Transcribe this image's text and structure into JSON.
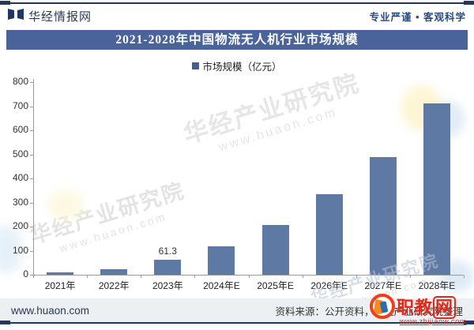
{
  "page": {
    "background": "#ffffff",
    "accent_navy": "#24355E"
  },
  "header": {
    "logo_text": "华经情报网",
    "tagline": "专业严谨 • 客观科学"
  },
  "title_banner": {
    "text": "2021-2028年中国物流无人机行业市场规模",
    "bg_color": "#4A649B",
    "text_color": "#ffffff"
  },
  "legend": {
    "label": "市场规模（亿元）",
    "swatch_color": "#44608F"
  },
  "chart_data": {
    "type": "bar",
    "title": "2021-2028年中国物流无人机行业市场规模",
    "unit": "亿元",
    "categories": [
      "2021年",
      "2022年",
      "2023年",
      "2024年E",
      "2025年E",
      "2026年E",
      "2027年E",
      "2028年E"
    ],
    "values": [
      11,
      22,
      61.3,
      118,
      205,
      335,
      490,
      713
    ],
    "shown_data_labels": [
      "",
      "",
      "61.3",
      "",
      "",
      "",
      "",
      ""
    ],
    "ylim": [
      0,
      800
    ],
    "ytick_step": 100,
    "bar_color": "#5E79A4",
    "grid": false,
    "legend_entries": [
      "市场规模（亿元）"
    ],
    "legend_position": "top-center"
  },
  "watermarks": {
    "diagonal_text": "华经产业研究院",
    "diagonal_subtext": "www.huaon.com",
    "overlay_brand": "职教网",
    "overlay_url": "www.zhijiaow.com"
  },
  "footer": {
    "site_url": "www.huaon.com",
    "source_note": "资料来源：公开资料，华经产业研究院整理"
  }
}
